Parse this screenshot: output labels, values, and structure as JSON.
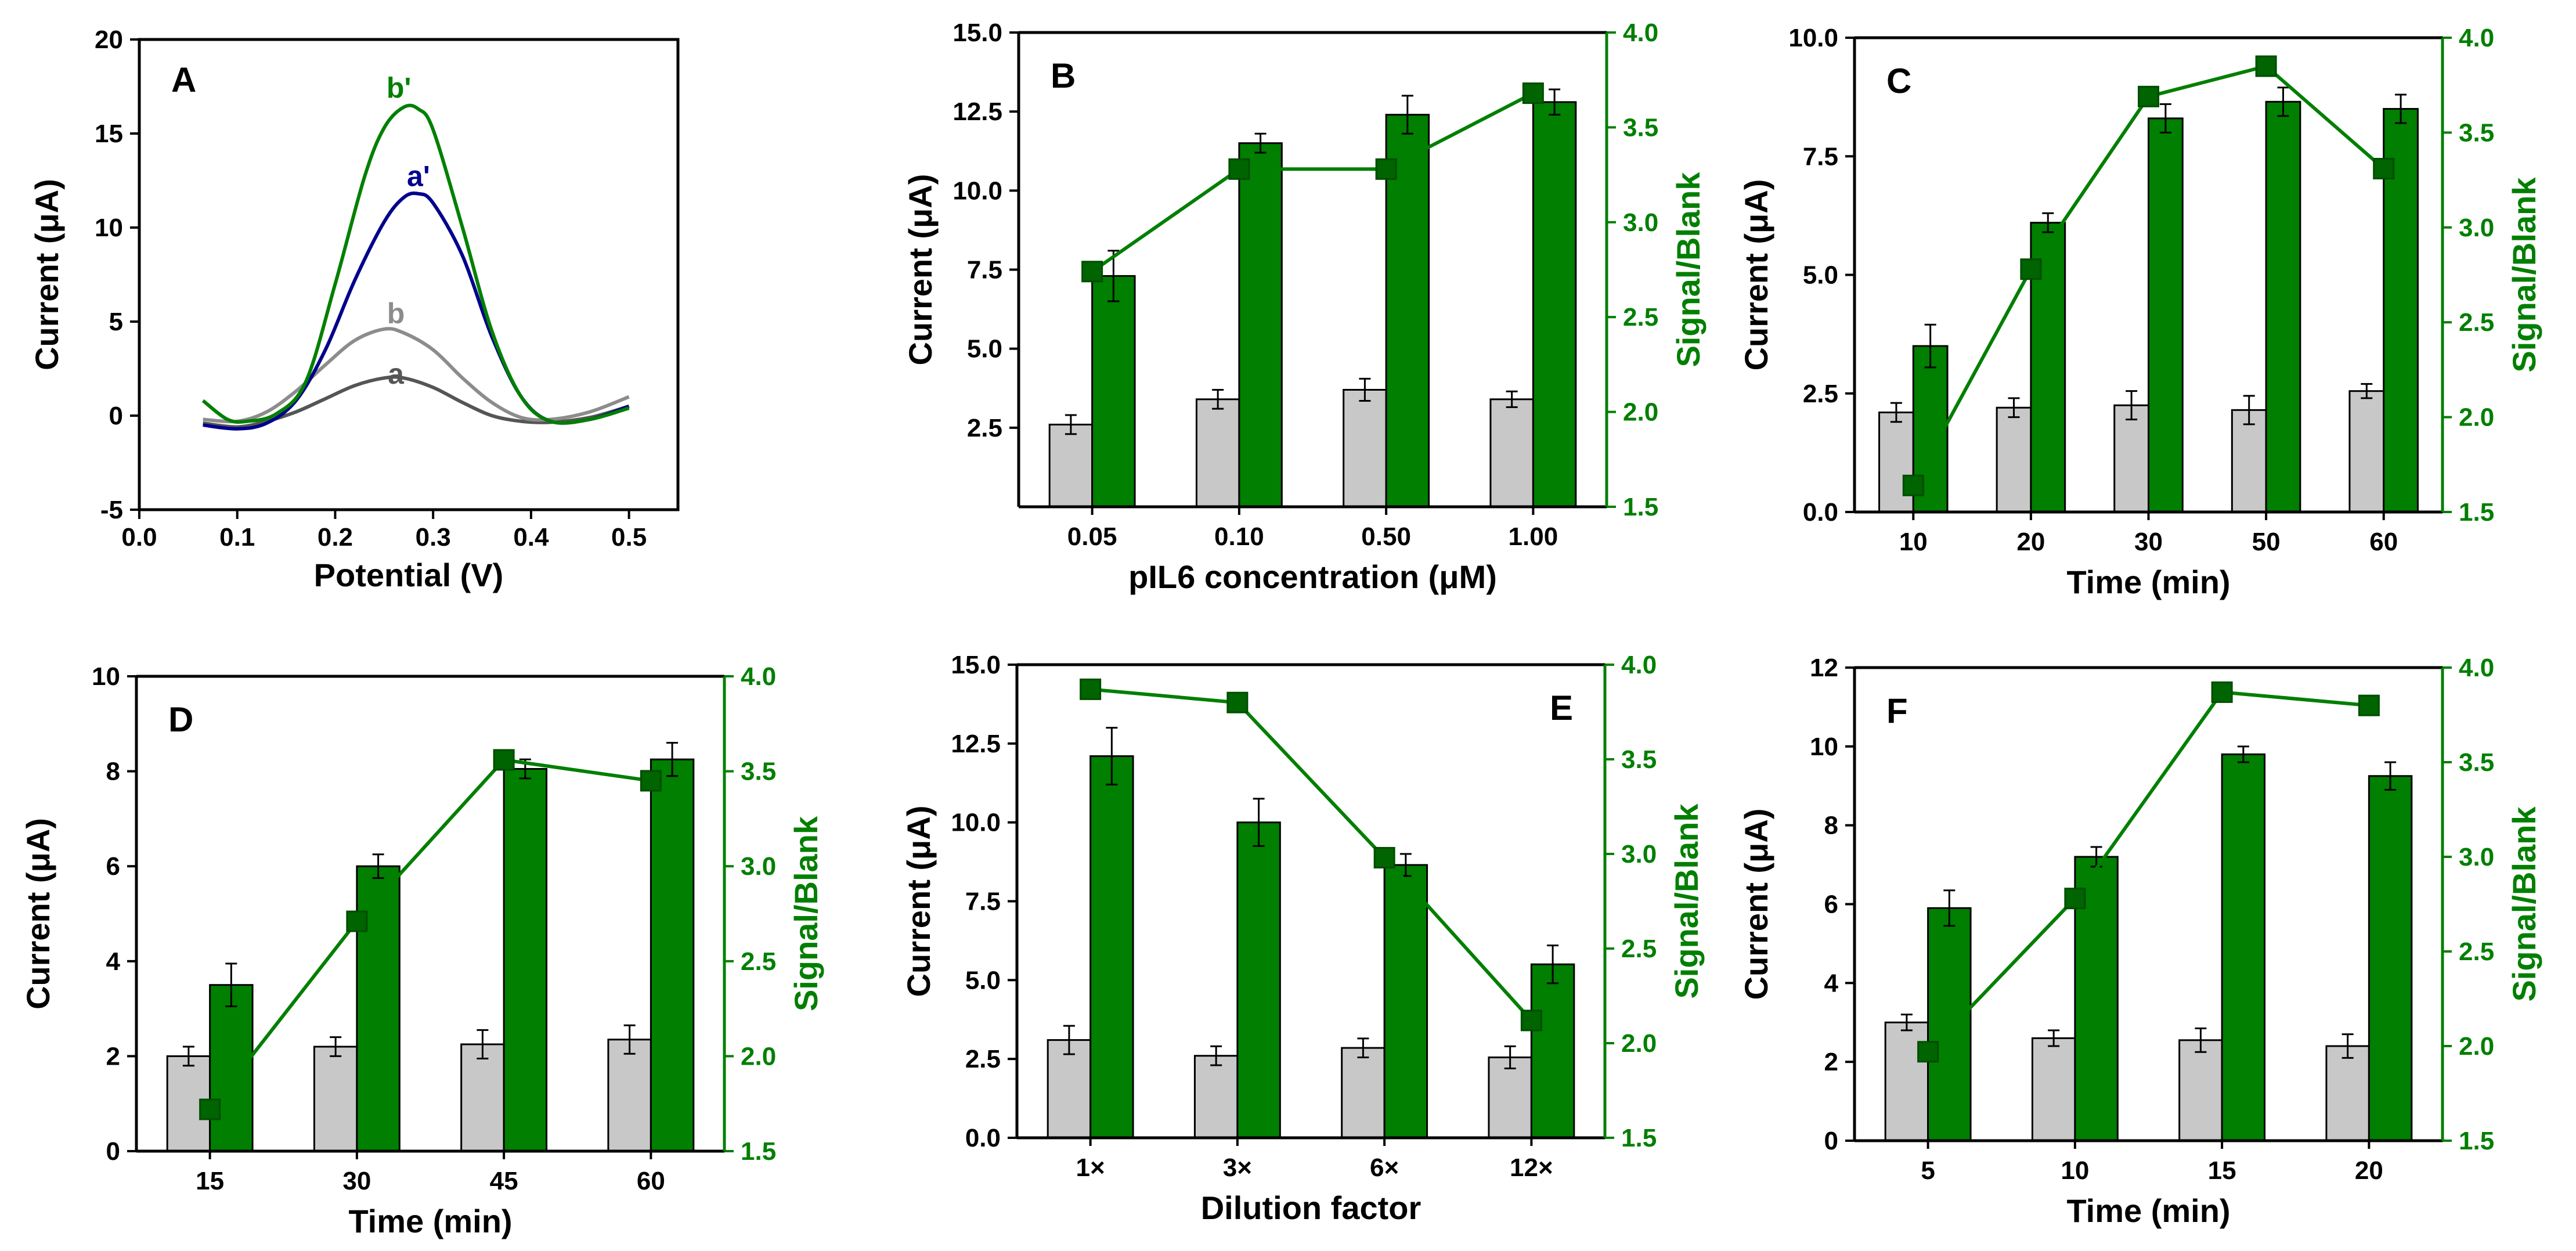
{
  "colors": {
    "green": "#007F00",
    "gray_bar": "#C8C8C8",
    "black": "#000000",
    "a": "#555555",
    "b": "#8C8C8C",
    "a_prime": "#00008B",
    "b_prime": "#008000"
  },
  "chart_data": [
    {
      "id": "A",
      "type": "line",
      "panel_label": "A",
      "xlabel": "Potential (V)",
      "ylabel": "Current (μA)",
      "xlim": [
        0,
        0.55
      ],
      "ylim": [
        -5,
        20
      ],
      "xticks": [
        0,
        0.1,
        0.2,
        0.3,
        0.4,
        0.5
      ],
      "xtick_labels": [
        "0.0",
        "0.1",
        "0.2",
        "0.3",
        "0.4",
        "0.5"
      ],
      "yticks": [
        -5,
        0,
        5,
        10,
        15,
        20
      ],
      "ytick_labels": [
        "-5",
        "0",
        "5",
        "10",
        "15",
        "20"
      ],
      "series": [
        {
          "name": "a",
          "color_key": "a",
          "x": [
            0.065,
            0.1,
            0.13,
            0.16,
            0.19,
            0.22,
            0.25,
            0.27,
            0.3,
            0.33,
            0.36,
            0.39,
            0.42,
            0.46,
            0.5
          ],
          "y": [
            -0.4,
            -0.6,
            -0.3,
            0.2,
            0.9,
            1.6,
            2.0,
            2.0,
            1.5,
            0.7,
            0.0,
            -0.3,
            -0.35,
            -0.1,
            0.5
          ]
        },
        {
          "name": "b",
          "color_key": "b",
          "x": [
            0.065,
            0.1,
            0.13,
            0.16,
            0.19,
            0.22,
            0.25,
            0.27,
            0.3,
            0.33,
            0.36,
            0.39,
            0.42,
            0.46,
            0.5
          ],
          "y": [
            -0.2,
            -0.3,
            0.2,
            1.3,
            2.7,
            4.0,
            4.6,
            4.4,
            3.5,
            2.0,
            0.7,
            -0.1,
            -0.2,
            0.2,
            1.0
          ]
        },
        {
          "name": "a'",
          "color_key": "a_prime",
          "x": [
            0.065,
            0.1,
            0.13,
            0.16,
            0.19,
            0.22,
            0.25,
            0.27,
            0.285,
            0.3,
            0.33,
            0.36,
            0.39,
            0.42,
            0.46,
            0.5
          ],
          "y": [
            -0.5,
            -0.7,
            -0.4,
            0.8,
            3.5,
            7.2,
            10.3,
            11.6,
            11.8,
            11.3,
            8.5,
            4.2,
            1.0,
            -0.3,
            -0.2,
            0.5
          ]
        },
        {
          "name": "b'",
          "color_key": "b_prime",
          "x": [
            0.065,
            0.09,
            0.11,
            0.14,
            0.17,
            0.2,
            0.23,
            0.25,
            0.27,
            0.285,
            0.3,
            0.33,
            0.36,
            0.39,
            0.42,
            0.46,
            0.5
          ],
          "y": [
            0.8,
            -0.2,
            -0.3,
            0.1,
            1.8,
            7.0,
            12.7,
            15.3,
            16.4,
            16.3,
            15.2,
            10.0,
            4.5,
            1.0,
            -0.3,
            -0.2,
            0.4
          ]
        }
      ],
      "curve_labels": [
        {
          "text": "a",
          "x": 0.262,
          "y": 1.7,
          "color_key": "a"
        },
        {
          "text": "b",
          "x": 0.262,
          "y": 4.9,
          "color_key": "b"
        },
        {
          "text": "a'",
          "x": 0.285,
          "y": 12.2,
          "color_key": "a_prime"
        },
        {
          "text": "b'",
          "x": 0.265,
          "y": 16.9,
          "color_key": "b_prime"
        }
      ]
    },
    {
      "id": "B",
      "type": "bar",
      "panel_label": "B",
      "label_side": "left",
      "categories": [
        "0.05",
        "0.10",
        "0.50",
        "1.00"
      ],
      "xlabel": "pIL6 concentration (μM)",
      "ylabel": "Current (μA)",
      "y2label": "Signal/Blank",
      "ylim": [
        0,
        15
      ],
      "yticks": [
        2.5,
        5,
        7.5,
        10,
        12.5,
        15
      ],
      "ytick_labels": [
        "2.5",
        "5.0",
        "7.5",
        "10.0",
        "12.5",
        "15.0"
      ],
      "y2lim": [
        1.5,
        4.0
      ],
      "y2ticks": [
        1.5,
        2.0,
        2.5,
        3.0,
        3.5,
        4.0
      ],
      "y2tick_labels": [
        "1.5",
        "2.0",
        "2.5",
        "3.0",
        "3.5",
        "4.0"
      ],
      "blank": {
        "values": [
          2.6,
          3.4,
          3.7,
          3.4
        ],
        "errors": [
          0.3,
          0.3,
          0.35,
          0.25
        ]
      },
      "signal": {
        "values": [
          7.3,
          11.5,
          12.4,
          12.8
        ],
        "errors": [
          0.8,
          0.3,
          0.6,
          0.4
        ]
      },
      "ratio": {
        "values": [
          2.74,
          3.28,
          3.28,
          3.68
        ],
        "errors": [
          0.04,
          0.04,
          0.04,
          0.03
        ]
      }
    },
    {
      "id": "C",
      "type": "bar",
      "panel_label": "C",
      "label_side": "left",
      "categories": [
        "10",
        "20",
        "30",
        "50",
        "60"
      ],
      "xlabel": "Time (min)",
      "ylabel": "Current (μA)",
      "y2label": "Signal/Blank",
      "ylim": [
        0,
        10
      ],
      "yticks": [
        0,
        2.5,
        5,
        7.5,
        10
      ],
      "ytick_labels": [
        "0.0",
        "2.5",
        "5.0",
        "7.5",
        "10.0"
      ],
      "y2lim": [
        1.5,
        4.0
      ],
      "y2ticks": [
        1.5,
        2.0,
        2.5,
        3.0,
        3.5,
        4.0
      ],
      "y2tick_labels": [
        "1.5",
        "2.0",
        "2.5",
        "3.0",
        "3.5",
        "4.0"
      ],
      "blank": {
        "values": [
          2.1,
          2.2,
          2.25,
          2.15,
          2.55
        ],
        "errors": [
          0.2,
          0.2,
          0.3,
          0.3,
          0.15
        ]
      },
      "signal": {
        "values": [
          3.5,
          6.1,
          8.3,
          8.65,
          8.5
        ],
        "errors": [
          0.45,
          0.2,
          0.3,
          0.3,
          0.3
        ]
      },
      "ratio": {
        "values": [
          1.64,
          2.78,
          3.69,
          3.85,
          3.31
        ],
        "errors": [
          0.06,
          0.05,
          0.04,
          0.04,
          0.05
        ]
      }
    },
    {
      "id": "D",
      "type": "bar",
      "panel_label": "D",
      "label_side": "left",
      "categories": [
        "15",
        "30",
        "45",
        "60"
      ],
      "xlabel": "Time (min)",
      "ylabel": "Current (μA)",
      "y2label": "Signal/Blank",
      "ylim": [
        0,
        10
      ],
      "yticks": [
        0,
        2,
        4,
        6,
        8,
        10
      ],
      "ytick_labels": [
        "0",
        "2",
        "4",
        "6",
        "8",
        "10"
      ],
      "y2lim": [
        1.5,
        4.0
      ],
      "y2ticks": [
        1.5,
        2.0,
        2.5,
        3.0,
        3.5,
        4.0
      ],
      "y2tick_labels": [
        "1.5",
        "2.0",
        "2.5",
        "3.0",
        "3.5",
        "4.0"
      ],
      "blank": {
        "values": [
          2.0,
          2.2,
          2.25,
          2.35
        ],
        "errors": [
          0.2,
          0.2,
          0.3,
          0.3
        ]
      },
      "signal": {
        "values": [
          3.5,
          6.0,
          8.05,
          8.25
        ],
        "errors": [
          0.45,
          0.25,
          0.2,
          0.35
        ]
      },
      "ratio": {
        "values": [
          1.72,
          2.71,
          3.56,
          3.45
        ],
        "errors": [
          0.05,
          0.05,
          0.04,
          0.05
        ]
      }
    },
    {
      "id": "E",
      "type": "bar",
      "panel_label": "E",
      "label_side": "right",
      "categories": [
        "1×",
        "3×",
        "6×",
        "12×"
      ],
      "xlabel": "Dilution factor",
      "ylabel": "Current (μA)",
      "y2label": "Signal/Blank",
      "ylim": [
        0,
        15
      ],
      "yticks": [
        0,
        2.5,
        5,
        7.5,
        10,
        12.5,
        15
      ],
      "ytick_labels": [
        "0.0",
        "2.5",
        "5.0",
        "7.5",
        "10.0",
        "12.5",
        "15.0"
      ],
      "y2lim": [
        1.5,
        4.0
      ],
      "y2ticks": [
        1.5,
        2.0,
        2.5,
        3.0,
        3.5,
        4.0
      ],
      "y2tick_labels": [
        "1.5",
        "2.0",
        "2.5",
        "3.0",
        "3.5",
        "4.0"
      ],
      "blank": {
        "values": [
          3.1,
          2.6,
          2.85,
          2.55
        ],
        "errors": [
          0.45,
          0.3,
          0.3,
          0.35
        ]
      },
      "signal": {
        "values": [
          12.1,
          10.0,
          8.65,
          5.5
        ],
        "errors": [
          0.9,
          0.75,
          0.35,
          0.6
        ]
      },
      "ratio": {
        "values": [
          3.87,
          3.8,
          2.98,
          2.12
        ],
        "errors": [
          0.05,
          0.05,
          0.04,
          0.04
        ]
      }
    },
    {
      "id": "F",
      "type": "bar",
      "panel_label": "F",
      "label_side": "left",
      "categories": [
        "5",
        "10",
        "15",
        "20"
      ],
      "xlabel": "Time (min)",
      "ylabel": "Current (μA)",
      "y2label": "Signal/Blank",
      "ylim": [
        0,
        12
      ],
      "yticks": [
        0,
        2,
        4,
        6,
        8,
        10,
        12
      ],
      "ytick_labels": [
        "0",
        "2",
        "4",
        "6",
        "8",
        "10",
        "12"
      ],
      "y2lim": [
        1.5,
        4.0
      ],
      "y2ticks": [
        1.5,
        2.0,
        2.5,
        3.0,
        3.5,
        4.0
      ],
      "y2tick_labels": [
        "1.5",
        "2.0",
        "2.5",
        "3.0",
        "3.5",
        "4.0"
      ],
      "blank": {
        "values": [
          3.0,
          2.6,
          2.55,
          2.4
        ],
        "errors": [
          0.2,
          0.2,
          0.3,
          0.3
        ]
      },
      "signal": {
        "values": [
          5.9,
          7.2,
          9.8,
          9.25
        ],
        "errors": [
          0.45,
          0.25,
          0.2,
          0.35
        ]
      },
      "ratio": {
        "values": [
          1.97,
          2.78,
          3.87,
          3.8
        ],
        "errors": [
          0.06,
          0.05,
          0.05,
          0.04
        ]
      }
    }
  ]
}
